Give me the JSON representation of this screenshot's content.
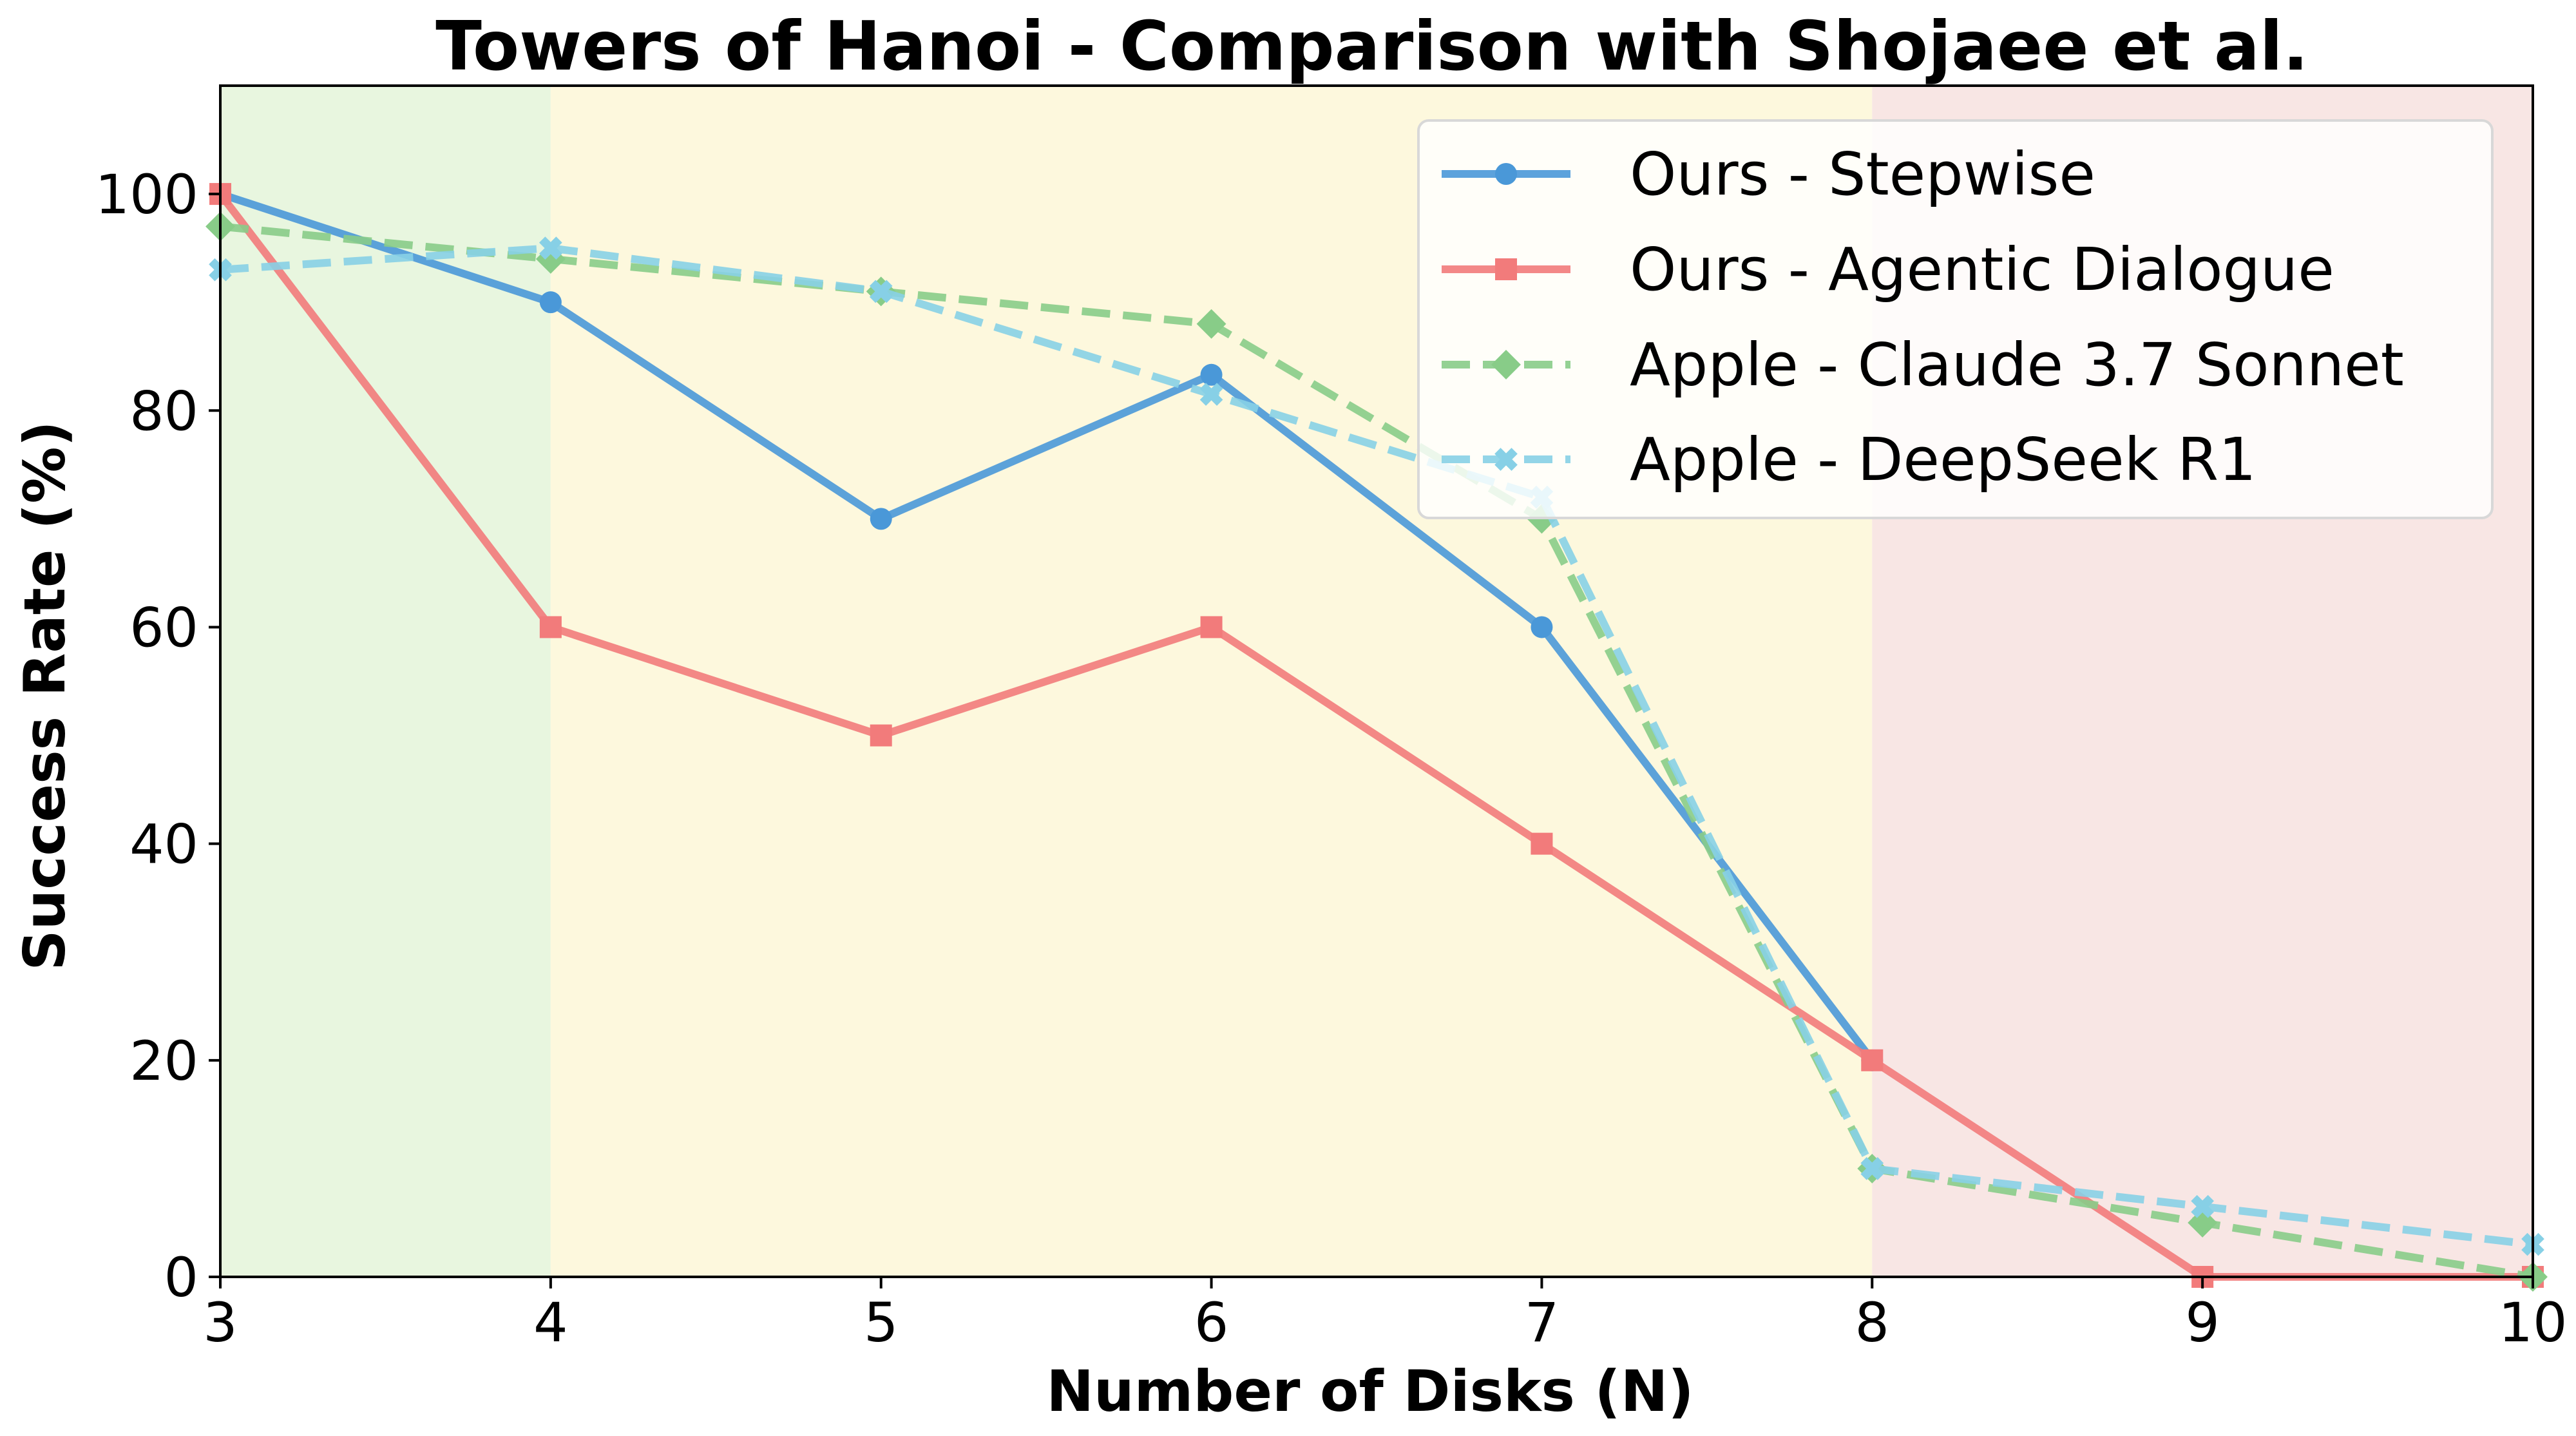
{
  "chart_data": {
    "type": "line",
    "title": "Towers of Hanoi - Comparison with Shojaee et al.",
    "xlabel": "Number of Disks (N)",
    "ylabel": "Success Rate (%)",
    "x_ticks": [
      "3",
      "4",
      "5",
      "6",
      "7",
      "8",
      "9",
      "10"
    ],
    "y_ticks": [
      "0",
      "20",
      "40",
      "60",
      "80",
      "100"
    ],
    "xlim": [
      3,
      10
    ],
    "ylim": [
      0,
      110
    ],
    "grid": false,
    "legend_position": "top-right",
    "background_regions": [
      {
        "from": 3,
        "to": 4,
        "color": "#e8f6df"
      },
      {
        "from": 4,
        "to": 8,
        "color": "#fdf8dd"
      },
      {
        "from": 8,
        "to": 10,
        "color": "#f8e6e4"
      }
    ],
    "series": [
      {
        "name": "Ours - Stepwise",
        "color": "#4a98d8",
        "line_style": "solid",
        "marker": "circle",
        "x": [
          3,
          4,
          5,
          6,
          7,
          8
        ],
        "y": [
          100,
          90,
          70,
          83.3,
          60,
          20
        ]
      },
      {
        "name": "Ours - Agentic Dialogue",
        "color": "#f27b7b",
        "line_style": "solid",
        "marker": "square",
        "x": [
          3,
          4,
          5,
          6,
          7,
          8,
          9,
          10
        ],
        "y": [
          100,
          60,
          50,
          60,
          40,
          20,
          0,
          0
        ]
      },
      {
        "name": "Apple - Claude 3.7 Sonnet",
        "color": "#88cc88",
        "line_style": "dashed",
        "marker": "diamond",
        "x": [
          3,
          4,
          5,
          6,
          7,
          8,
          9,
          10
        ],
        "y": [
          97,
          94,
          91,
          88,
          70,
          10,
          5,
          0
        ]
      },
      {
        "name": "Apple - DeepSeek R1",
        "color": "#87d0e6",
        "line_style": "dashed",
        "marker": "x",
        "x": [
          3,
          4,
          5,
          6,
          7,
          8,
          9,
          10
        ],
        "y": [
          93,
          95,
          91,
          81.5,
          72,
          10,
          6.5,
          3
        ]
      }
    ]
  }
}
